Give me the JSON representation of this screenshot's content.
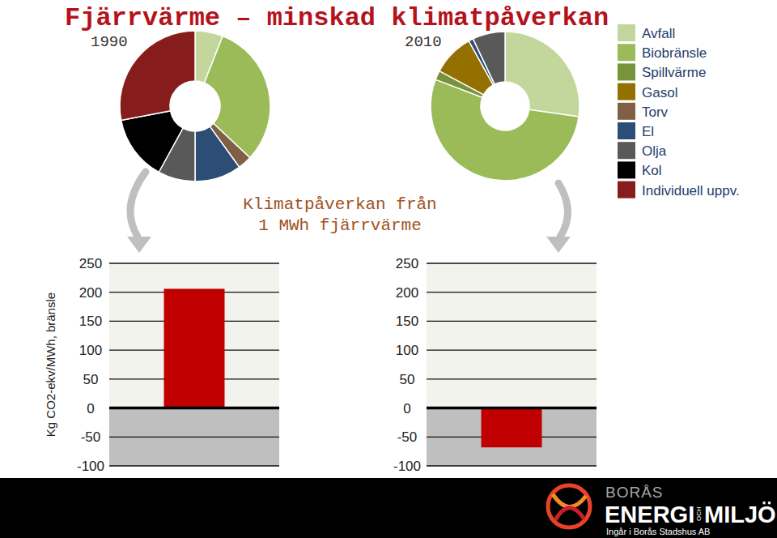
{
  "title": "Fjärrvärme – minskad klimatpåverkan",
  "chart_data": [
    {
      "type": "pie",
      "title": "1990",
      "values": [
        6,
        31,
        0,
        0,
        3,
        10,
        8,
        14,
        28
      ],
      "colors": [
        "#c3d69b",
        "#9bbb59",
        "#77933c",
        "#947000",
        "#7f6045",
        "#2c4d75",
        "#595959",
        "#000000",
        "#861c1c"
      ]
    },
    {
      "type": "pie",
      "title": "2010",
      "categories": [
        "Avfall",
        "Biobränsle",
        "Spillvärme",
        "Gasol",
        "Torv",
        "El",
        "Olja",
        "Kol",
        "Individuell uppv."
      ],
      "values": [
        27,
        53,
        2,
        9,
        0,
        1,
        7,
        0,
        0
      ],
      "colors": [
        "#c3d69b",
        "#9bbb59",
        "#77933c",
        "#947000",
        "#7f6045",
        "#2c4d75",
        "#595959",
        "#000000",
        "#861c1c"
      ],
      "legend": "right"
    },
    {
      "type": "bar",
      "title": "Klimatpåverkan från 1 MWh fjärrvärme",
      "ylabel": "Kg CO2-ekv/MWh, bränsle",
      "values": [
        206
      ],
      "color": "#c00000",
      "ylim": [
        -100,
        250
      ],
      "yticks": [
        -100,
        -50,
        0,
        50,
        100,
        150,
        200,
        250
      ],
      "grid": true
    },
    {
      "type": "bar",
      "values": [
        -68
      ],
      "color": "#c00000",
      "ylim": [
        -100,
        250
      ],
      "yticks": [
        -100,
        -50,
        0,
        50,
        100,
        150,
        200,
        250
      ],
      "grid": true
    }
  ],
  "footer": {
    "brand_top": "BORÅS",
    "brand_main": "ENERGI",
    "brand_och": "OCH",
    "brand_end": "MILJÖ",
    "tagline": "Ingår i Borås Stadshus AB"
  }
}
